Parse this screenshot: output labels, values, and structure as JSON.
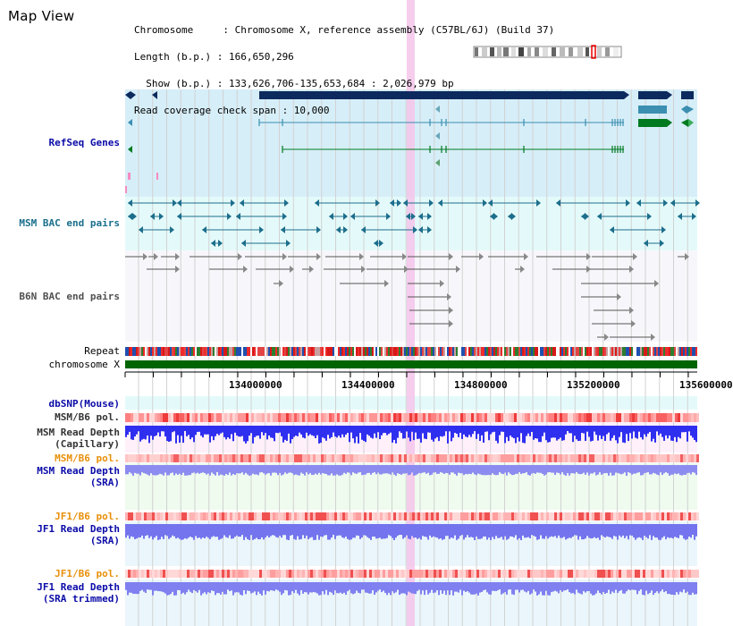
{
  "title": "Map View",
  "info_lines": {
    "line1": "Chromosome     : Chromosome X, reference assembly (C57BL/6J) (Build 37)",
    "line2": "Length (b.p.) : 166,650,296",
    "line3": "  Show (b.p.) : 133,626,706-135,653,684 : 2,026,979 bp",
    "line4": "Read coverage check span : 10,000"
  },
  "tracks": {
    "refseq": "RefSeq Genes",
    "msm_bac": "MSM BAC end pairs",
    "b6n_bac": "B6N BAC end pairs",
    "repeat": "Repeat",
    "chromosome": "chromosome X",
    "dbsnp": "dbSNP(Mouse)",
    "msm_b6_pol_1": "MSM/B6 pol.",
    "msm_depth_cap_1": "MSM Read Depth",
    "msm_depth_cap_2": "(Capillary)",
    "msm_b6_pol_2": "MSM/B6 pol.",
    "msm_depth_sra_1": "MSM Read Depth",
    "msm_depth_sra_2": "(SRA)",
    "jf1_b6_pol_1": "JF1/B6 pol.",
    "jf1_depth_sra_1": "JF1 Read Depth",
    "jf1_depth_sra_2": "(SRA)",
    "jf1_b6_pol_2": "JF1/B6 pol.",
    "jf1_depth_trim_1": "JF1 Read Depth",
    "jf1_depth_trim_2": "(SRA trimmed)"
  },
  "axis": {
    "ticks": [
      "134000000",
      "134400000",
      "134800000",
      "135200000",
      "135600000"
    ]
  },
  "colors": {
    "refseq_bg": "#d6eef8",
    "bac_bg": "#e4fafa",
    "cap_bg": "#fff0fa",
    "sra_bg": "#eefbee",
    "trim_bg": "#eaf6fb",
    "highlight": "#f4c4ea",
    "gene_dark": "#0d2a5e",
    "gene_teal": "#3b8fb0",
    "gene_green": "#007a20",
    "chromosome_bar": "#006400"
  },
  "icons": [
    "chromosome-ideogram-icon"
  ]
}
